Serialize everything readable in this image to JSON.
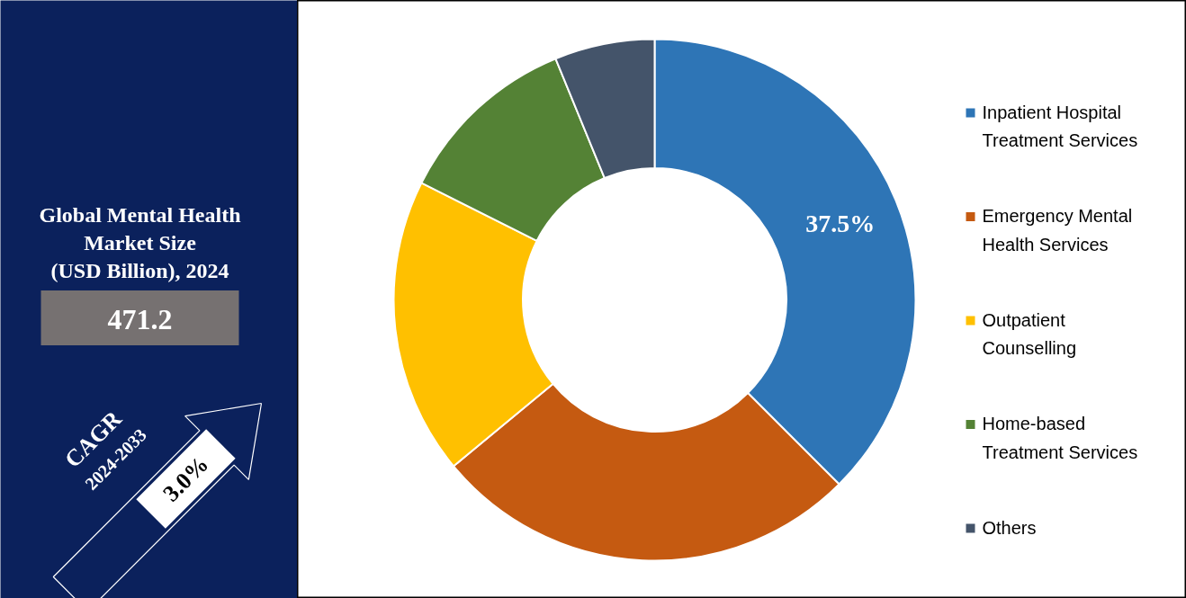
{
  "chart_data": [
    {
      "type": "other",
      "title": "Global Mental Health\nMarket Size\n(USD Billion), 2024",
      "annotations": [
        "471.2",
        "CAGR",
        "2024-2033",
        "3.0%"
      ]
    },
    {
      "type": "donut",
      "categories": [
        "Inpatient Hospital Treatment Services",
        "Emergency Mental Health Services",
        "Outpatient Counselling",
        "Home-based Treatment Services",
        "Others"
      ],
      "values": [
        37.5,
        26.5,
        18.4,
        11.4,
        6.2
      ],
      "colors": [
        "#2e75b6",
        "#c55a11",
        "#ffc000",
        "#548235",
        "#44546a"
      ],
      "value_labels": [
        "37.5%",
        null,
        null,
        null,
        null
      ],
      "legend": "right"
    }
  ]
}
